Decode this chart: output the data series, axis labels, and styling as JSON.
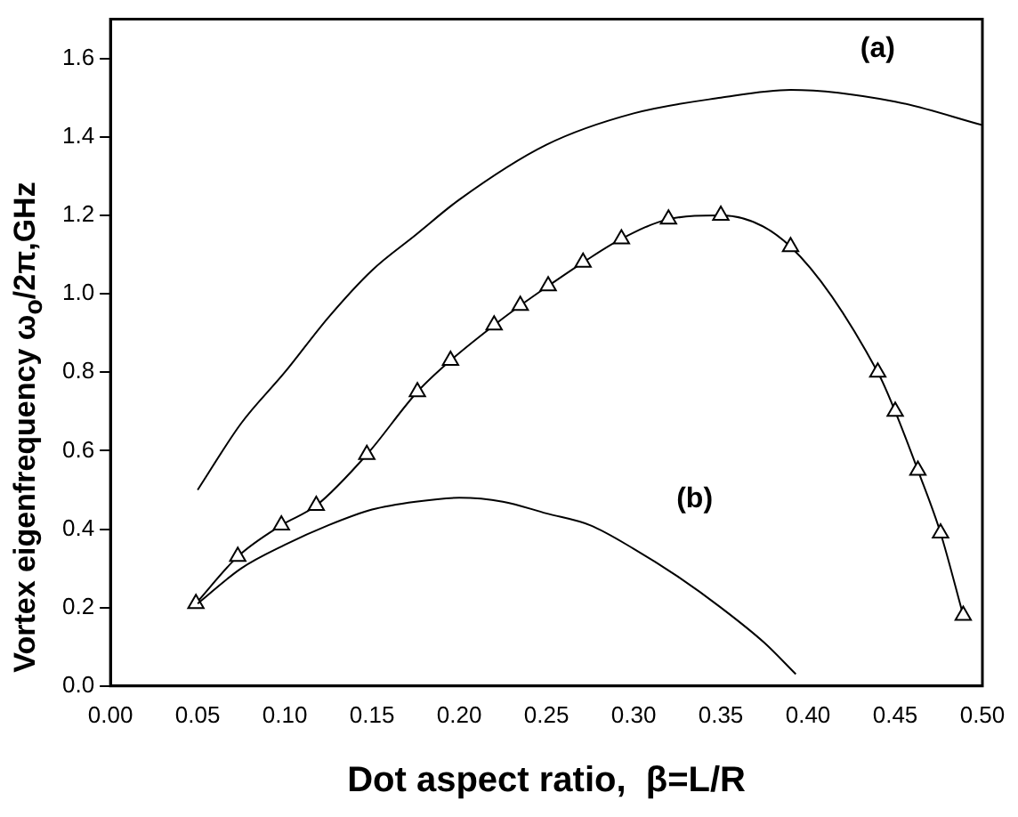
{
  "chart_data": {
    "type": "line",
    "xlabel": "Dot aspect ratio,  β=L/R",
    "ylabel": "Vortex eigenfrequency ω$_{o}$/2π,GHz",
    "xlim": [
      0,
      0.5
    ],
    "ylim": [
      0,
      1.7
    ],
    "xticks": [
      {
        "value": 0,
        "label": "0.00"
      },
      {
        "value": 0.05,
        "label": "0.05"
      },
      {
        "value": 0.1,
        "label": "0.10"
      },
      {
        "value": 0.15,
        "label": "0.15"
      },
      {
        "value": 0.2,
        "label": "0.20"
      },
      {
        "value": 0.25,
        "label": "0.25"
      },
      {
        "value": 0.3,
        "label": "0.30"
      },
      {
        "value": 0.35,
        "label": "0.35"
      },
      {
        "value": 0.4,
        "label": "0.40"
      },
      {
        "value": 0.45,
        "label": "0.45"
      },
      {
        "value": 0.5,
        "label": "0.50"
      }
    ],
    "yticks": [
      {
        "value": 0,
        "label": "0.0"
      },
      {
        "value": 0.2,
        "label": "0.2"
      },
      {
        "value": 0.4,
        "label": "0.4"
      },
      {
        "value": 0.6,
        "label": "0.6"
      },
      {
        "value": 0.8,
        "label": "0.8"
      },
      {
        "value": 1,
        "label": "1.0"
      },
      {
        "value": 1.2,
        "label": "1.2"
      },
      {
        "value": 1.4,
        "label": "1.4"
      },
      {
        "value": 1.6,
        "label": "1.6"
      }
    ],
    "grid": false,
    "legend": false,
    "series": [
      {
        "color": "#000000",
        "marker": "none",
        "x": [
          0.05,
          0.075,
          0.1,
          0.125,
          0.15,
          0.175,
          0.2,
          0.25,
          0.3,
          0.35,
          0.39,
          0.45,
          0.5
        ],
        "values": [
          0.5,
          0.67,
          0.8,
          0.94,
          1.06,
          1.15,
          1.24,
          1.38,
          1.46,
          1.5,
          1.52,
          1.49,
          1.43
        ]
      },
      {
        "color": "#000000",
        "marker": "none",
        "x": [
          0.05,
          0.075,
          0.1,
          0.125,
          0.15,
          0.175,
          0.2,
          0.225,
          0.25,
          0.275,
          0.3,
          0.325,
          0.35,
          0.375,
          0.393
        ],
        "values": [
          0.21,
          0.3,
          0.36,
          0.41,
          0.45,
          0.47,
          0.48,
          0.47,
          0.44,
          0.41,
          0.35,
          0.28,
          0.2,
          0.11,
          0.03
        ]
      },
      {
        "color": "#000000",
        "marker": "triangle",
        "x": [
          0.049,
          0.073,
          0.098,
          0.118,
          0.147,
          0.176,
          0.195,
          0.22,
          0.235,
          0.251,
          0.271,
          0.293,
          0.32,
          0.35,
          0.39,
          0.44,
          0.45,
          0.463,
          0.476,
          0.489
        ],
        "values": [
          0.21,
          0.33,
          0.41,
          0.46,
          0.59,
          0.75,
          0.83,
          0.92,
          0.97,
          1.02,
          1.08,
          1.14,
          1.19,
          1.2,
          1.12,
          0.8,
          0.7,
          0.55,
          0.39,
          0.18
        ]
      }
    ],
    "annotations": [
      "(a)",
      "(b)"
    ]
  }
}
